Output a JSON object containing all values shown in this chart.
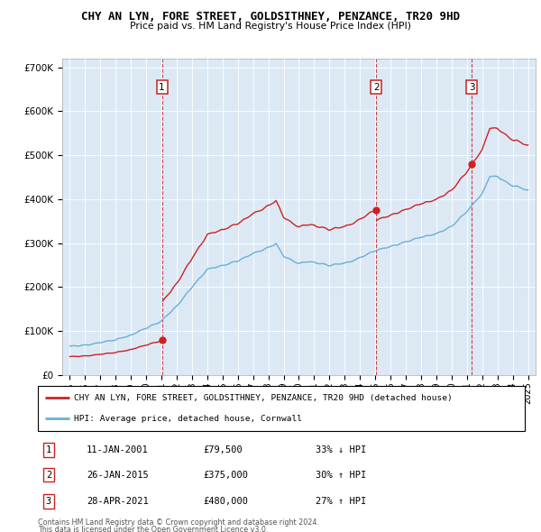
{
  "title": "CHY AN LYN, FORE STREET, GOLDSITHNEY, PENZANCE, TR20 9HD",
  "subtitle": "Price paid vs. HM Land Registry's House Price Index (HPI)",
  "legend_line1": "CHY AN LYN, FORE STREET, GOLDSITHNEY, PENZANCE, TR20 9HD (detached house)",
  "legend_line2": "HPI: Average price, detached house, Cornwall",
  "footer1": "Contains HM Land Registry data © Crown copyright and database right 2024.",
  "footer2": "This data is licensed under the Open Government Licence v3.0.",
  "transactions": [
    {
      "num": 1,
      "date": "11-JAN-2001",
      "price": 79500,
      "hpi_diff": "33% ↓ HPI",
      "date_x": 2001.03
    },
    {
      "num": 2,
      "date": "26-JAN-2015",
      "price": 375000,
      "hpi_diff": "30% ↑ HPI",
      "date_x": 2015.07
    },
    {
      "num": 3,
      "date": "28-APR-2021",
      "price": 480000,
      "hpi_diff": "27% ↑ HPI",
      "date_x": 2021.32
    }
  ],
  "hpi_color": "#6baed6",
  "price_color": "#cc2222",
  "background_color": "#dce9f5",
  "ylim": [
    0,
    720000
  ],
  "yticks": [
    0,
    100000,
    200000,
    300000,
    400000,
    500000,
    600000,
    700000
  ],
  "xmin": 1994.5,
  "xmax": 2025.5,
  "xticks": [
    1995,
    1996,
    1997,
    1998,
    1999,
    2000,
    2001,
    2002,
    2003,
    2004,
    2005,
    2006,
    2007,
    2008,
    2009,
    2010,
    2011,
    2012,
    2013,
    2014,
    2015,
    2016,
    2017,
    2018,
    2019,
    2020,
    2021,
    2022,
    2023,
    2024,
    2025
  ]
}
